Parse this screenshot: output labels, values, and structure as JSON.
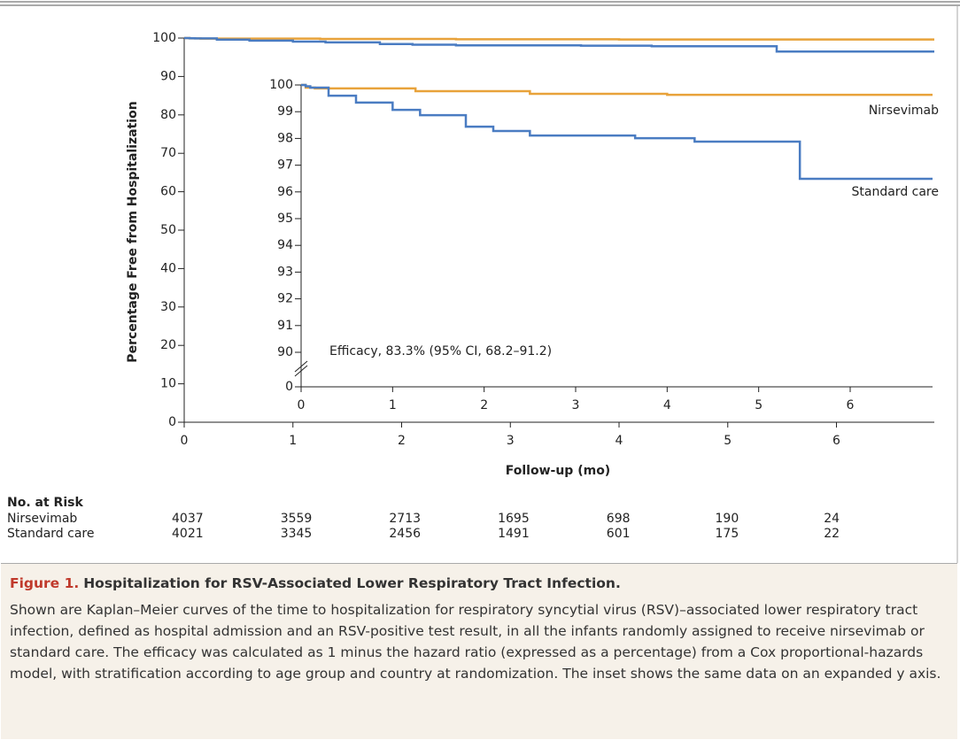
{
  "chart_data": [
    {
      "type": "step",
      "xlabel": "Follow-up (mo)",
      "ylabel": "Percentage Free from Hospitalization",
      "xlim": [
        0,
        6.9
      ],
      "xticks": [
        0,
        1,
        2,
        3,
        4,
        5,
        6
      ],
      "ylim": [
        0,
        100
      ],
      "yticks": [
        0,
        10,
        20,
        30,
        40,
        50,
        60,
        70,
        80,
        90,
        100
      ],
      "series": [
        {
          "name": "Nirsevimab",
          "color": "#e8a23a",
          "x": [
            0,
            0.05,
            0.15,
            1.25,
            2.5,
            4.0,
            6.9
          ],
          "values": [
            100,
            99.9,
            99.87,
            99.77,
            99.67,
            99.63,
            99.63
          ]
        },
        {
          "name": "Standard care",
          "color": "#4a7cc2",
          "x": [
            0,
            0.05,
            0.1,
            0.3,
            0.6,
            1.0,
            1.3,
            1.8,
            2.1,
            2.5,
            3.65,
            4.3,
            5.45,
            6.9
          ],
          "values": [
            100,
            99.95,
            99.9,
            99.6,
            99.34,
            99.07,
            98.87,
            98.44,
            98.28,
            98.11,
            98.01,
            97.88,
            96.49,
            96.49
          ]
        }
      ]
    },
    {
      "type": "step",
      "annotation": "Efficacy, 83.3% (95% CI, 68.2–91.2)",
      "xlim": [
        0,
        6.9
      ],
      "xticks": [
        0,
        1,
        2,
        3,
        4,
        5,
        6
      ],
      "ylim": [
        0,
        100
      ],
      "ybreak": [
        0,
        90
      ],
      "yticks": [
        0,
        90,
        91,
        92,
        93,
        94,
        95,
        96,
        97,
        98,
        99,
        100
      ]
    }
  ],
  "risk_table": {
    "title": "No. at Risk",
    "rows": [
      {
        "name": "Nirsevimab",
        "values": [
          4037,
          3559,
          2713,
          1695,
          698,
          190,
          24
        ]
      },
      {
        "name": "Standard care",
        "values": [
          4021,
          3345,
          2456,
          1491,
          601,
          175,
          22
        ]
      }
    ]
  },
  "caption": {
    "label": "Figure 1.",
    "title": "Hospitalization for RSV-Associated Lower Respiratory Tract Infection.",
    "text": "Shown are Kaplan–Meier curves of the time to hospitalization for respiratory syncytial virus (RSV)–associated lower respiratory tract infection, defined as hospital admission and an RSV-positive test result, in all the infants randomly assigned to receive nirsevimab or standard care. The efficacy was calculated as 1 minus the hazard ratio (expressed as a percentage) from a Cox proportional-hazards model, with stratification according to age group and country at randomization. The inset shows the same data on an expanded y axis."
  }
}
